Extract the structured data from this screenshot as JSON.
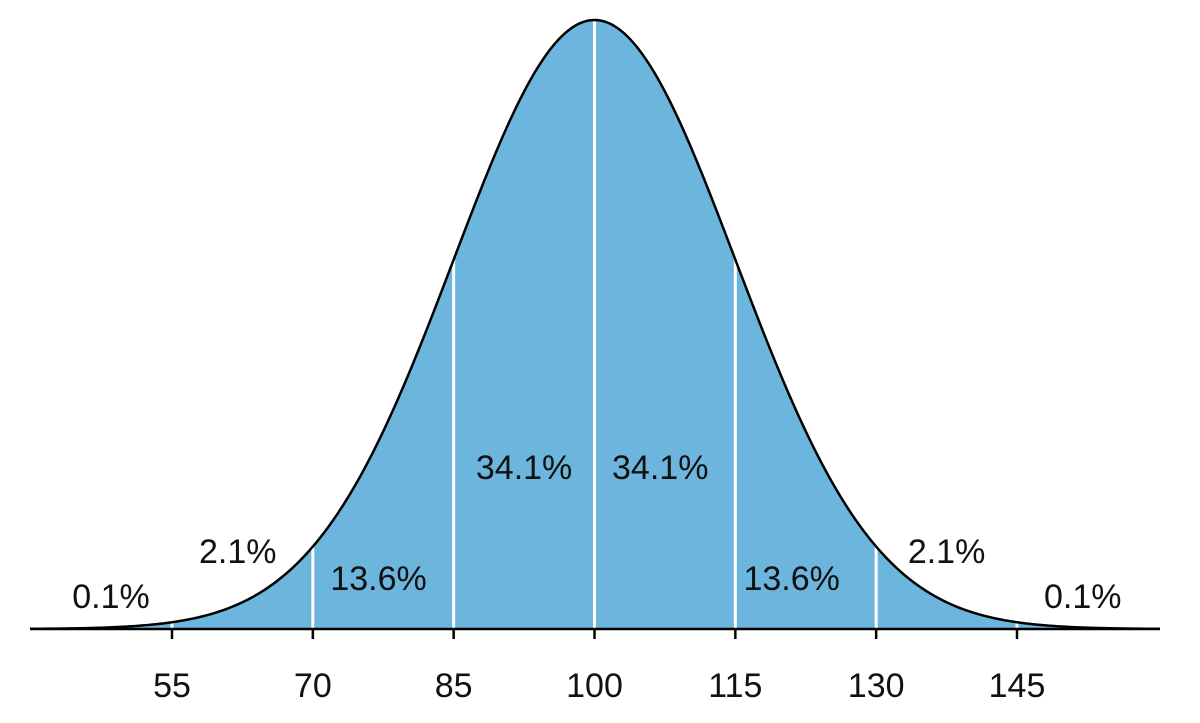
{
  "chart_data": {
    "type": "area",
    "title": "",
    "xlabel": "",
    "ylabel": "",
    "distribution": {
      "mean": 100,
      "sd": 15
    },
    "xlim": [
      40,
      160
    ],
    "x_ticks": [
      55,
      70,
      85,
      100,
      115,
      130,
      145
    ],
    "x_tick_labels": [
      "55",
      "70",
      "85",
      "100",
      "115",
      "130",
      "145"
    ],
    "segment_labels": [
      {
        "text": "0.1%",
        "x": 48.5
      },
      {
        "text": "2.1%",
        "x": 62
      },
      {
        "text": "13.6%",
        "x": 77
      },
      {
        "text": "34.1%",
        "x": 92.5
      },
      {
        "text": "34.1%",
        "x": 107
      },
      {
        "text": "13.6%",
        "x": 121
      },
      {
        "text": "2.1%",
        "x": 137.5
      },
      {
        "text": "0.1%",
        "x": 152
      }
    ],
    "grid": false,
    "fill_color": "#6cb6de",
    "divider_color": "#ffffff",
    "line_color": "#000000"
  }
}
